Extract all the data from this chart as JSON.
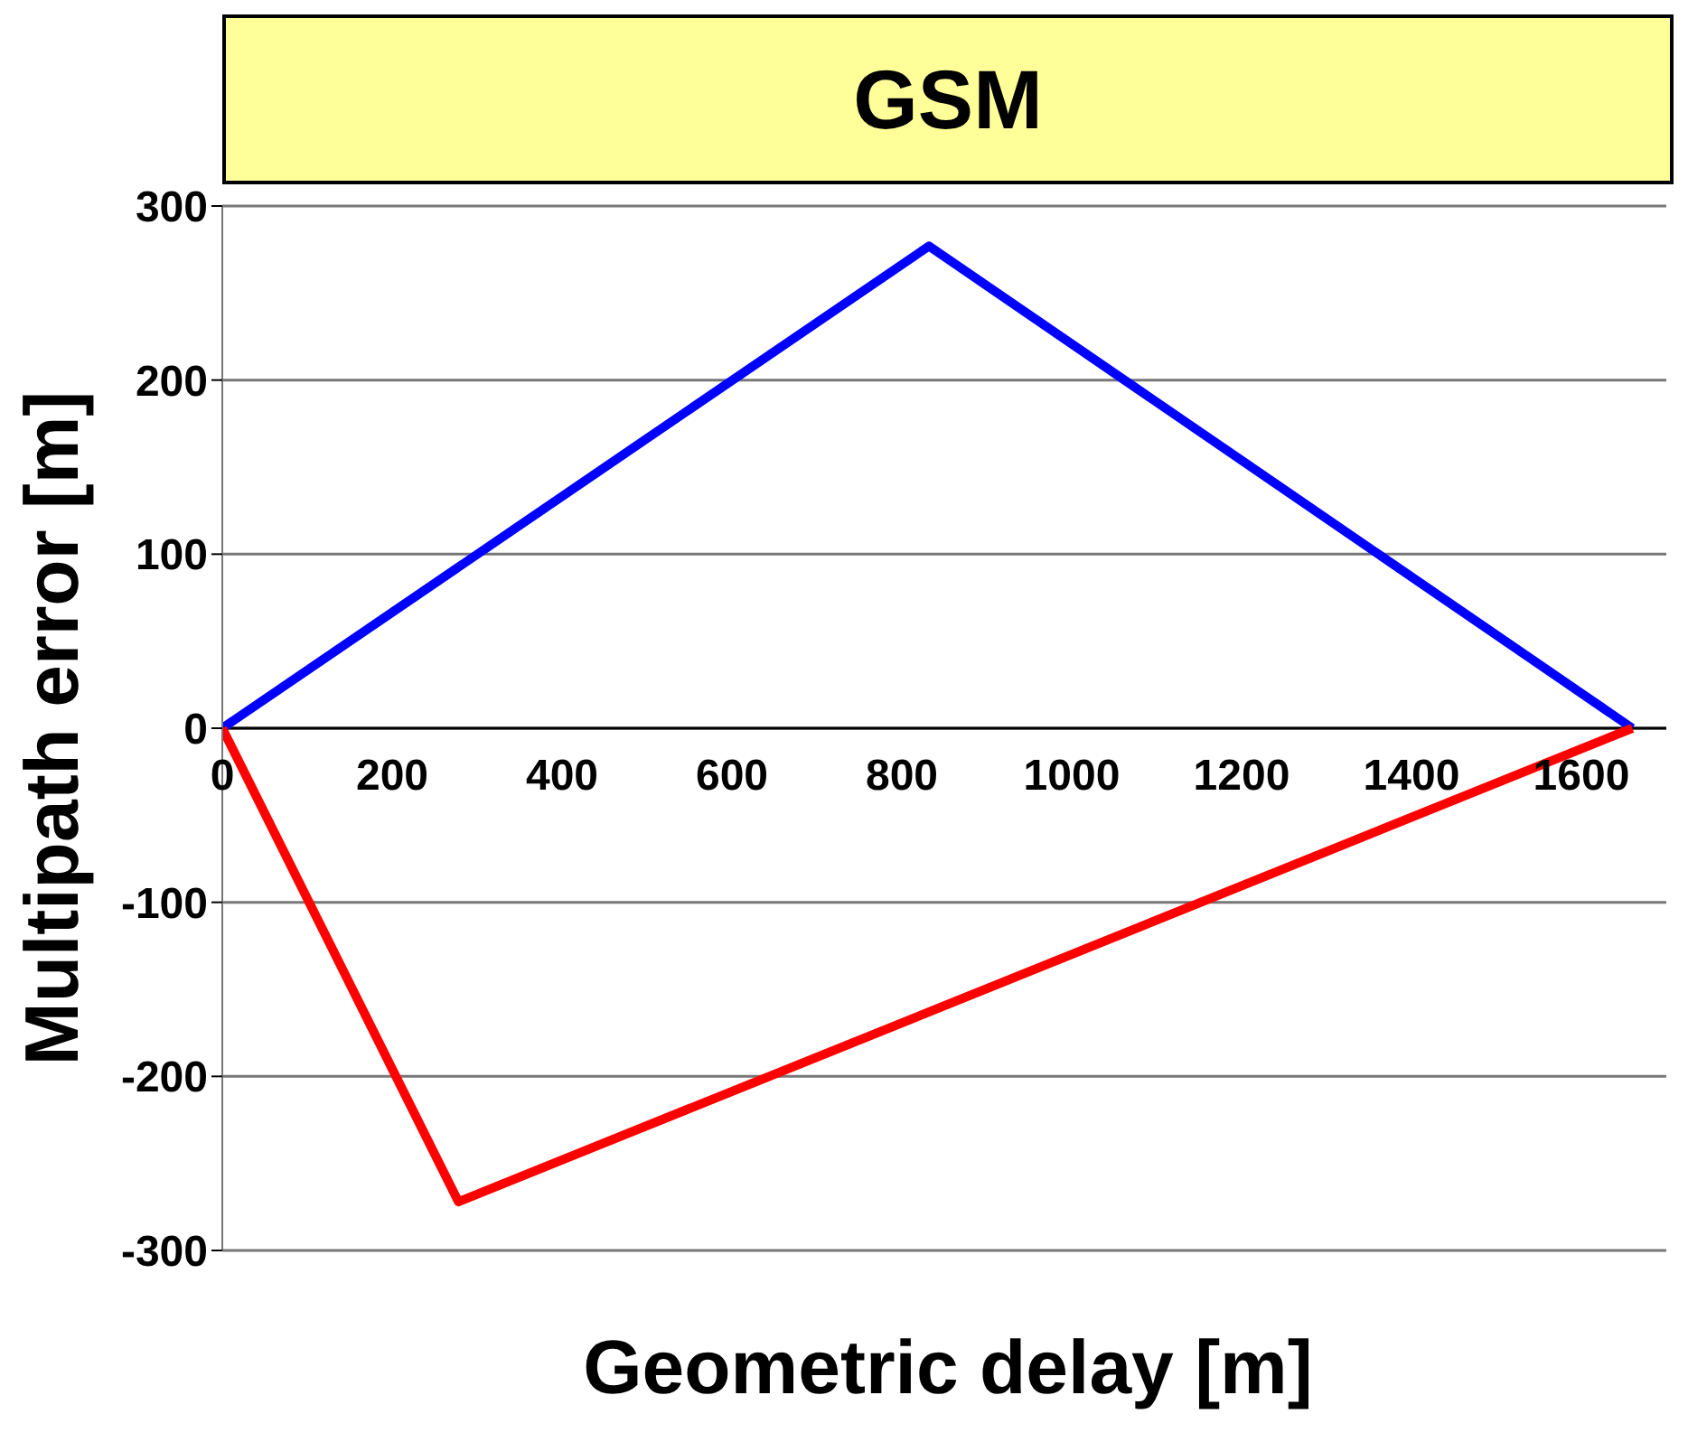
{
  "chart_data": {
    "type": "line",
    "title": "GSM",
    "xlabel": "Geometric delay [m]",
    "ylabel": "Multipath error [m]",
    "series": [
      {
        "color": "#0000ff",
        "x": [
          0,
          832,
          1660
        ],
        "values": [
          0,
          277,
          0
        ]
      },
      {
        "color": "#ff0000",
        "x": [
          0,
          278,
          1660
        ],
        "values": [
          0,
          -272,
          0
        ]
      }
    ],
    "xlim": [
      0,
      1700
    ],
    "xticks": [
      0,
      200,
      400,
      600,
      800,
      1000,
      1200,
      1400,
      1600
    ],
    "ylim": [
      -300,
      300
    ],
    "yticks": [
      -300,
      -200,
      -100,
      0,
      100,
      200,
      300
    ],
    "grid": "y",
    "marker": "none",
    "line_style": "solid"
  }
}
